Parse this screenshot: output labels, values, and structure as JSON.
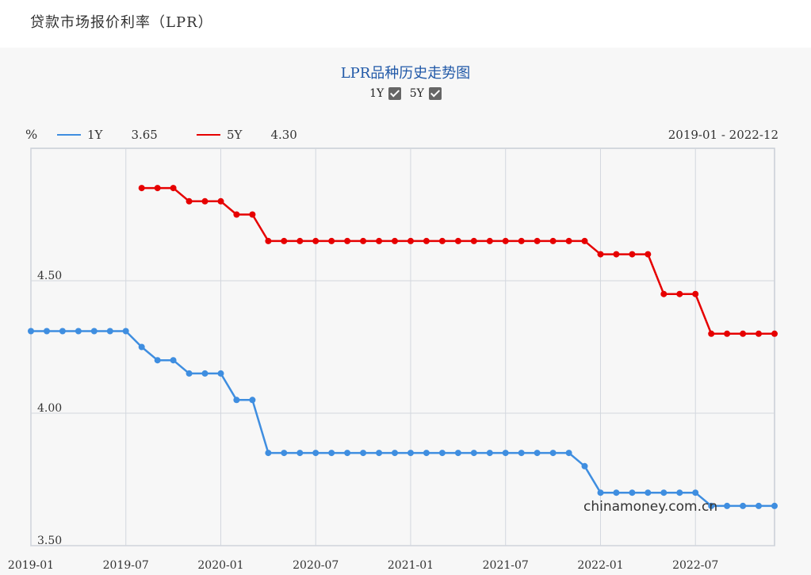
{
  "page": {
    "title": "贷款市场报价利率（LPR）"
  },
  "controls": {
    "toggles": [
      {
        "label": "1Y",
        "checked": true
      },
      {
        "label": "5Y",
        "checked": true
      }
    ]
  },
  "legend": {
    "unit": "%",
    "items": [
      {
        "label": "1Y",
        "value": "3.65",
        "color": "#3f8ee0"
      },
      {
        "label": "5Y",
        "value": "4.30",
        "color": "#e60000"
      }
    ],
    "range": "2019-01 - 2022-12"
  },
  "watermark": "chinamoney.com.cn",
  "chart_data": {
    "type": "line",
    "title": "LPR品种历史走势图",
    "xlabel": "",
    "ylabel": "%",
    "x": [
      "2019-01",
      "2019-02",
      "2019-03",
      "2019-04",
      "2019-05",
      "2019-06",
      "2019-07",
      "2019-08",
      "2019-09",
      "2019-10",
      "2019-11",
      "2019-12",
      "2020-01",
      "2020-02",
      "2020-03",
      "2020-04",
      "2020-05",
      "2020-06",
      "2020-07",
      "2020-08",
      "2020-09",
      "2020-10",
      "2020-11",
      "2020-12",
      "2021-01",
      "2021-02",
      "2021-03",
      "2021-04",
      "2021-05",
      "2021-06",
      "2021-07",
      "2021-08",
      "2021-09",
      "2021-10",
      "2021-11",
      "2021-12",
      "2022-01",
      "2022-02",
      "2022-03",
      "2022-04",
      "2022-05",
      "2022-06",
      "2022-07",
      "2022-08",
      "2022-09",
      "2022-10",
      "2022-11",
      "2022-12"
    ],
    "x_tick_labels": [
      "2019-01",
      "2019-07",
      "2020-01",
      "2020-07",
      "2021-01",
      "2021-07",
      "2022-01",
      "2022-07"
    ],
    "ylim": [
      3.5,
      5.0
    ],
    "y_ticks": [
      {
        "value": 3.5,
        "label": "3.50"
      },
      {
        "value": 4.0,
        "label": "4.00"
      },
      {
        "value": 4.5,
        "label": "4.50"
      }
    ],
    "grid": true,
    "legend_position": "top-left",
    "series": [
      {
        "name": "1Y",
        "color": "#3f8ee0",
        "values": [
          4.31,
          4.31,
          4.31,
          4.31,
          4.31,
          4.31,
          4.31,
          4.25,
          4.2,
          4.2,
          4.15,
          4.15,
          4.15,
          4.05,
          4.05,
          3.85,
          3.85,
          3.85,
          3.85,
          3.85,
          3.85,
          3.85,
          3.85,
          3.85,
          3.85,
          3.85,
          3.85,
          3.85,
          3.85,
          3.85,
          3.85,
          3.85,
          3.85,
          3.85,
          3.85,
          3.8,
          3.7,
          3.7,
          3.7,
          3.7,
          3.7,
          3.7,
          3.7,
          3.65,
          3.65,
          3.65,
          3.65,
          3.65
        ]
      },
      {
        "name": "5Y",
        "color": "#e60000",
        "values": [
          null,
          null,
          null,
          null,
          null,
          null,
          null,
          4.85,
          4.85,
          4.85,
          4.8,
          4.8,
          4.8,
          4.75,
          4.75,
          4.65,
          4.65,
          4.65,
          4.65,
          4.65,
          4.65,
          4.65,
          4.65,
          4.65,
          4.65,
          4.65,
          4.65,
          4.65,
          4.65,
          4.65,
          4.65,
          4.65,
          4.65,
          4.65,
          4.65,
          4.65,
          4.6,
          4.6,
          4.6,
          4.6,
          4.45,
          4.45,
          4.45,
          4.3,
          4.3,
          4.3,
          4.3,
          4.3
        ]
      }
    ]
  }
}
